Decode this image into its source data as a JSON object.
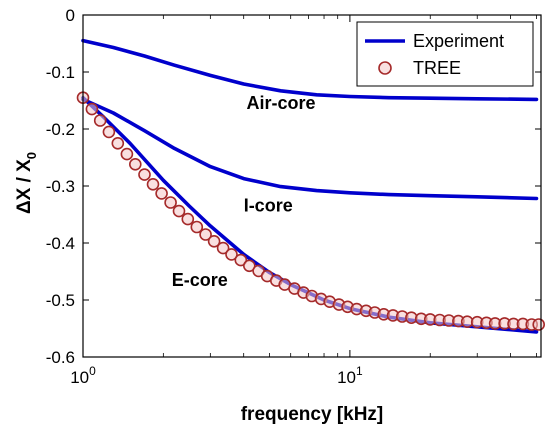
{
  "chart_data": {
    "type": "line",
    "xlabel": "frequency [kHz]",
    "ylabel_main": "ΔX / X",
    "ylabel_sub": "0",
    "xscale": "log",
    "xlim": [
      1.0,
      52
    ],
    "ylim": [
      -0.6,
      0
    ],
    "yticks": [
      0,
      -0.1,
      -0.2,
      -0.3,
      -0.4,
      -0.5,
      -0.6
    ],
    "ytick_labels": [
      "0",
      "-0.1",
      "-0.2",
      "-0.3",
      "-0.4",
      "-0.5",
      "-0.6"
    ],
    "xticks": [
      {
        "value": 1,
        "base": "10",
        "exp": "0"
      },
      {
        "value": 10,
        "base": "10",
        "exp": "1"
      }
    ],
    "grid": false,
    "legend": {
      "placement": "top-right",
      "entries": [
        {
          "label": "Experiment",
          "style": "line",
          "color": "#0000cc"
        },
        {
          "label": "TREE",
          "style": "marker",
          "color": "#a52a2a"
        }
      ]
    },
    "annotations": [
      {
        "text": "Air-core",
        "x": 4.1,
        "y": -0.165
      },
      {
        "text": "I-core",
        "x": 4.0,
        "y": -0.345
      },
      {
        "text": "E-core",
        "x": 2.15,
        "y": -0.475
      }
    ],
    "series": [
      {
        "name": "Experiment",
        "label": "Air-core",
        "style": "line",
        "color": "#0000cc",
        "x": [
          1.0,
          1.3,
          1.7,
          2.2,
          3.0,
          4.0,
          5.5,
          7.5,
          10,
          14,
          20,
          30,
          50
        ],
        "y": [
          -0.045,
          -0.057,
          -0.072,
          -0.088,
          -0.106,
          -0.121,
          -0.133,
          -0.14,
          -0.143,
          -0.145,
          -0.146,
          -0.147,
          -0.148
        ]
      },
      {
        "name": "Experiment",
        "label": "I-core",
        "style": "line",
        "color": "#0000cc",
        "x": [
          1.0,
          1.3,
          1.7,
          2.2,
          3.0,
          4.0,
          5.5,
          7.5,
          10,
          14,
          20,
          30,
          50
        ],
        "y": [
          -0.148,
          -0.172,
          -0.203,
          -0.234,
          -0.266,
          -0.287,
          -0.301,
          -0.308,
          -0.312,
          -0.315,
          -0.317,
          -0.319,
          -0.322
        ]
      },
      {
        "name": "Experiment",
        "label": "E-core",
        "style": "line",
        "color": "#0000cc",
        "x": [
          1.0,
          1.2,
          1.5,
          2.0,
          2.5,
          3.0,
          4.0,
          5.0,
          6.0,
          8.0,
          10,
          14,
          20,
          30,
          50
        ],
        "y": [
          -0.145,
          -0.18,
          -0.225,
          -0.29,
          -0.335,
          -0.37,
          -0.42,
          -0.452,
          -0.473,
          -0.5,
          -0.515,
          -0.53,
          -0.54,
          -0.547,
          -0.556
        ]
      },
      {
        "name": "TREE",
        "style": "marker",
        "color": "#a52a2a",
        "x": [
          1.0,
          1.08,
          1.16,
          1.25,
          1.35,
          1.46,
          1.57,
          1.7,
          1.83,
          1.97,
          2.13,
          2.29,
          2.47,
          2.67,
          2.88,
          3.1,
          3.35,
          3.6,
          3.9,
          4.2,
          4.55,
          4.9,
          5.3,
          5.7,
          6.2,
          6.7,
          7.2,
          7.8,
          8.4,
          9.1,
          9.8,
          10.6,
          11.5,
          12.4,
          13.4,
          14.5,
          15.7,
          17.0,
          18.5,
          20.0,
          21.7,
          23.5,
          25.5,
          27.5,
          30.0,
          32.5,
          35.0,
          38.0,
          41.0,
          44.5,
          48.0,
          51.0
        ],
        "y": [
          -0.145,
          -0.165,
          -0.185,
          -0.205,
          -0.225,
          -0.244,
          -0.262,
          -0.28,
          -0.297,
          -0.313,
          -0.329,
          -0.344,
          -0.358,
          -0.372,
          -0.385,
          -0.397,
          -0.409,
          -0.42,
          -0.43,
          -0.44,
          -0.449,
          -0.458,
          -0.466,
          -0.473,
          -0.48,
          -0.487,
          -0.493,
          -0.498,
          -0.503,
          -0.508,
          -0.512,
          -0.516,
          -0.519,
          -0.522,
          -0.525,
          -0.527,
          -0.529,
          -0.531,
          -0.533,
          -0.534,
          -0.535,
          -0.536,
          -0.537,
          -0.538,
          -0.539,
          -0.54,
          -0.541,
          -0.541,
          -0.542,
          -0.542,
          -0.543,
          -0.543
        ]
      }
    ]
  }
}
